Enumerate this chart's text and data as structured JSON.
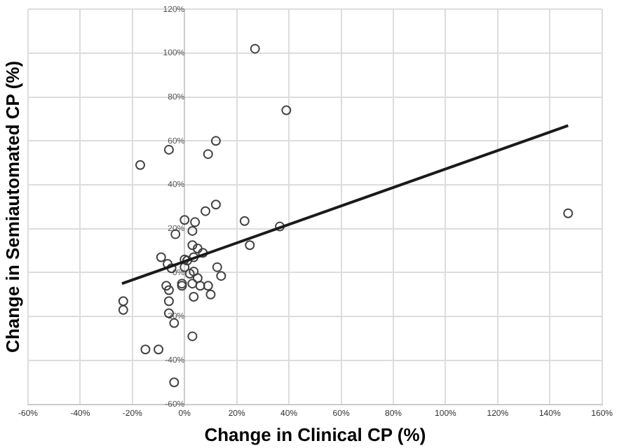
{
  "chart_data": {
    "type": "scatter",
    "xlabel": "Change in Clinical CP (%)",
    "ylabel": "Change in Semiautomated CP (%)",
    "xlim": [
      -60,
      160
    ],
    "ylim": [
      -60,
      120
    ],
    "xticks": [
      {
        "value": -60,
        "label": "-60%"
      },
      {
        "value": -40,
        "label": "-40%"
      },
      {
        "value": -20,
        "label": "-20%"
      },
      {
        "value": 0,
        "label": "0%"
      },
      {
        "value": 20,
        "label": "20%"
      },
      {
        "value": 40,
        "label": "40%"
      },
      {
        "value": 60,
        "label": "60%"
      },
      {
        "value": 80,
        "label": "80%"
      },
      {
        "value": 100,
        "label": "100%"
      },
      {
        "value": 120,
        "label": "120%"
      },
      {
        "value": 140,
        "label": "140%"
      },
      {
        "value": 160,
        "label": "160%"
      }
    ],
    "yticks": [
      {
        "value": -60,
        "label": "-60%"
      },
      {
        "value": -40,
        "label": "-40%"
      },
      {
        "value": -20,
        "label": "-20%"
      },
      {
        "value": 0,
        "label": "0%"
      },
      {
        "value": 20,
        "label": "20%"
      },
      {
        "value": 40,
        "label": "40%"
      },
      {
        "value": 60,
        "label": "60%"
      },
      {
        "value": 80,
        "label": "80%"
      },
      {
        "value": 100,
        "label": "100%"
      },
      {
        "value": 120,
        "label": "120%"
      }
    ],
    "grid": true,
    "legend": false,
    "marker": "circle",
    "series": [
      {
        "type": "scatter",
        "color": "#404040",
        "x": [
          27,
          39,
          12,
          9,
          -6,
          -17,
          8,
          12,
          0,
          4,
          23,
          3,
          -3.5,
          36.5,
          25,
          3,
          5,
          7,
          -9,
          3.5,
          -6.5,
          0,
          1,
          -5,
          0,
          12.5,
          3.5,
          2,
          5,
          14,
          -7,
          -6,
          -1,
          -1,
          3,
          6,
          9,
          3.5,
          10,
          -23.5,
          -23.5,
          -6,
          -6,
          -4,
          3,
          -15,
          -10,
          -4,
          147
        ],
        "values": [
          102,
          74,
          60,
          54,
          56,
          49,
          28,
          31,
          24,
          23,
          23.5,
          19,
          17.5,
          21,
          12.5,
          12.5,
          11,
          9,
          7,
          7,
          4,
          6,
          5.5,
          2,
          2.5,
          2.5,
          0.5,
          -0.5,
          -2.5,
          -1.5,
          -6,
          -8,
          -5,
          -6,
          -5,
          -6,
          -6,
          -11,
          -10,
          -13,
          -17,
          -13,
          -18.5,
          -23,
          -29,
          -35,
          -35,
          -50,
          27
        ]
      },
      {
        "type": "line",
        "color": "#1a1a1a",
        "marker": "none",
        "line_style": "solid",
        "x": [
          -24,
          147
        ],
        "values": [
          -5,
          67
        ]
      }
    ]
  }
}
